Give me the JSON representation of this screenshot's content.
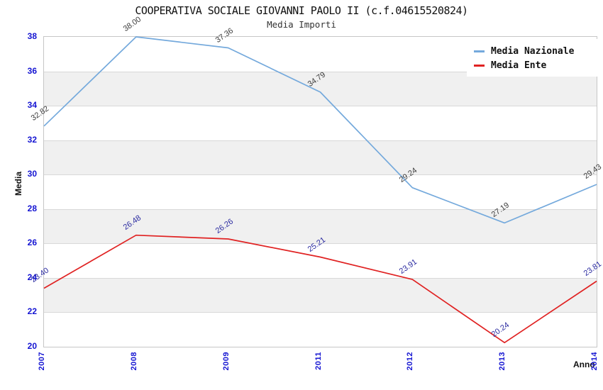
{
  "header": {
    "title": "COOPERATIVA SOCIALE GIOVANNI PAOLO II (c.f.04615520824)",
    "subtitle": "Media Importi"
  },
  "axes": {
    "y_label": "Media",
    "x_label": "Anno"
  },
  "colors": {
    "tick_label": "#1414d2",
    "band_gray": "#f0f0f0",
    "gridline": "#d8d8d8",
    "frame": "#c6c6c6"
  },
  "chart_data": {
    "type": "line",
    "title": "COOPERATIVA SOCIALE GIOVANNI PAOLO II (c.f.04615520824)",
    "subtitle": "Media Importi",
    "xlabel": "Anno",
    "ylabel": "Media",
    "categories": [
      "2007",
      "2008",
      "2009",
      "2011",
      "2012",
      "2013",
      "2014"
    ],
    "series": [
      {
        "name": "Media Nazionale",
        "color": "#74a9dc",
        "label_color": "#3d3d3d",
        "values": [
          32.82,
          38.0,
          37.36,
          34.79,
          29.24,
          27.19,
          29.43
        ],
        "labels": [
          "32.82",
          "38.00",
          "37.36",
          "34.79",
          "29.24",
          "27.19",
          "29.43"
        ]
      },
      {
        "name": "Media Ente",
        "color": "#e02222",
        "label_color": "#2a2aa0",
        "values": [
          23.4,
          26.48,
          26.26,
          25.21,
          23.91,
          20.24,
          23.81
        ],
        "labels": [
          "23.40",
          "26.48",
          "26.26",
          "25.21",
          "23.91",
          "20.24",
          "23.81"
        ]
      }
    ],
    "ylim": [
      20,
      38
    ],
    "ytick_step": 2,
    "y_ticks": [
      "20",
      "22",
      "24",
      "26",
      "28",
      "30",
      "32",
      "34",
      "36",
      "38"
    ],
    "grid": "horizontal-bands-alternating",
    "legend_position": "top-right"
  }
}
